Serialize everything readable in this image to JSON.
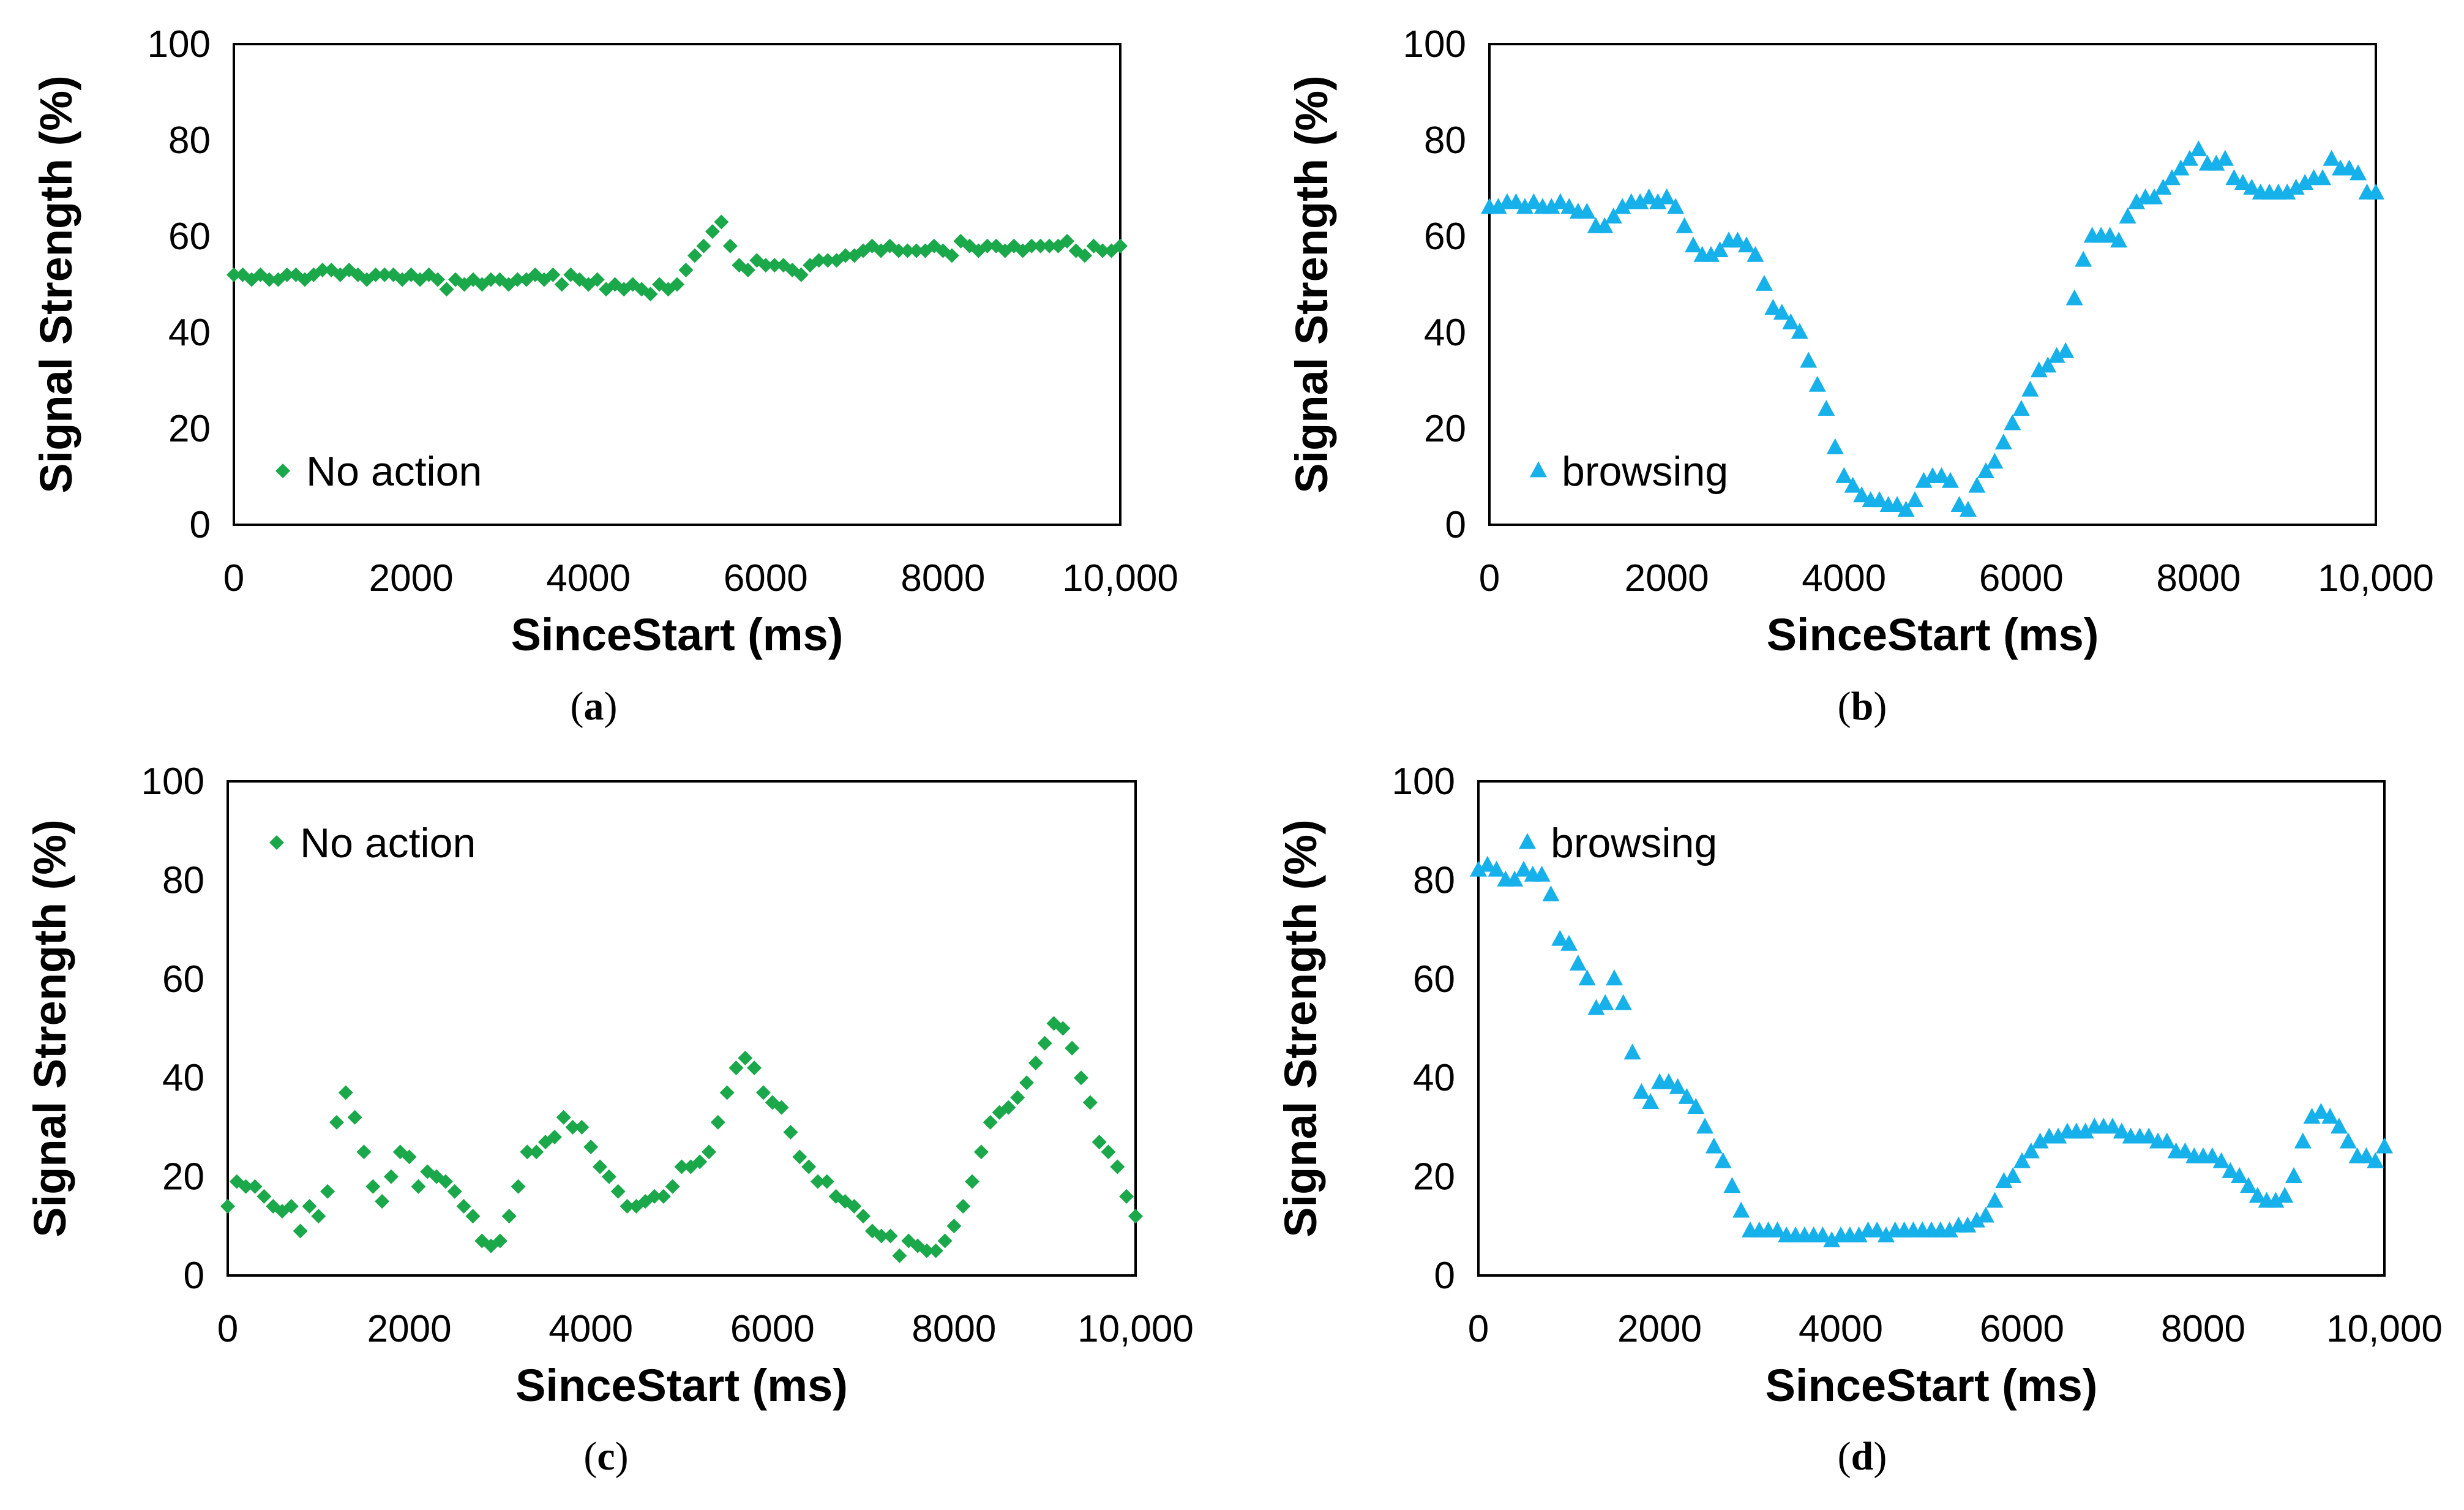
{
  "figure": {
    "panel_count": 4
  },
  "colors": {
    "green": "#1aa84a",
    "blue": "#16b0ea"
  },
  "chart_data": [
    {
      "panel": "a",
      "type": "scatter",
      "marker": "diamond",
      "color": "#1aa84a",
      "xlabel": "SinceStart (ms)",
      "ylabel": "Signal Strength (%)",
      "xlim": [
        0,
        10000
      ],
      "ylim": [
        0,
        100
      ],
      "xticks": [
        0,
        2000,
        4000,
        6000,
        8000,
        10000
      ],
      "xtick_labels": [
        "0",
        "2000",
        "4000",
        "6000",
        "8000",
        "10,000"
      ],
      "yticks": [
        0,
        20,
        40,
        60,
        80,
        100
      ],
      "ytick_labels": [
        "0",
        "20",
        "40",
        "60",
        "80",
        "100"
      ],
      "legend": "No action",
      "legend_position": "bottom-left",
      "label_prefix": "(",
      "label_letter": "a",
      "label_suffix": ")",
      "x": [
        0,
        100,
        200,
        300,
        400,
        500,
        600,
        700,
        800,
        900,
        1000,
        1100,
        1200,
        1300,
        1400,
        1500,
        1600,
        1700,
        1800,
        1900,
        2000,
        2100,
        2200,
        2300,
        2400,
        2500,
        2600,
        2700,
        2800,
        2900,
        3000,
        3100,
        3200,
        3300,
        3400,
        3500,
        3600,
        3700,
        3800,
        3900,
        4000,
        4100,
        4200,
        4300,
        4400,
        4500,
        4600,
        4700,
        4800,
        4900,
        5000,
        5100,
        5200,
        5300,
        5400,
        5500,
        5600,
        5700,
        5800,
        5900,
        6000,
        6100,
        6200,
        6300,
        6400,
        6500,
        6600,
        6700,
        6800,
        6900,
        7000,
        7100,
        7200,
        7300,
        7400,
        7500,
        7600,
        7700,
        7800,
        7900,
        8000,
        8100,
        8200,
        8300,
        8400,
        8500,
        8600,
        8700,
        8800,
        8900,
        9000,
        9100,
        9200,
        9300,
        9400,
        9500,
        9600,
        9700,
        9800,
        9900,
        10000
      ],
      "y": [
        52,
        52,
        51,
        52,
        51,
        51,
        52,
        52,
        51,
        52,
        53,
        53,
        52,
        53,
        52,
        51,
        52,
        52,
        52,
        51,
        52,
        51,
        52,
        51,
        49,
        51,
        50,
        51,
        50,
        51,
        51,
        50,
        51,
        51,
        52,
        51,
        52,
        50,
        52,
        51,
        50,
        51,
        49,
        50,
        49,
        50,
        49,
        48,
        50,
        49,
        50,
        53,
        56,
        58,
        61,
        63,
        58,
        54,
        53,
        55,
        54,
        54,
        54,
        53,
        52,
        54,
        55,
        55,
        55,
        56,
        56,
        57,
        58,
        57,
        58,
        57,
        57,
        57,
        57,
        58,
        57,
        56,
        59,
        58,
        57,
        58,
        58,
        57,
        58,
        57,
        58,
        58,
        58,
        58,
        59,
        57,
        56,
        58,
        57,
        57,
        58
      ]
    },
    {
      "panel": "b",
      "type": "scatter",
      "marker": "triangle",
      "color": "#16b0ea",
      "xlabel": "SinceStart (ms)",
      "ylabel": "Signal Strength (%)",
      "xlim": [
        0,
        10000
      ],
      "ylim": [
        0,
        100
      ],
      "xticks": [
        0,
        2000,
        4000,
        6000,
        8000,
        10000
      ],
      "xtick_labels": [
        "0",
        "2000",
        "4000",
        "6000",
        "8000",
        "10,000"
      ],
      "yticks": [
        0,
        20,
        40,
        60,
        80,
        100
      ],
      "ytick_labels": [
        "0",
        "20",
        "40",
        "60",
        "80",
        "100"
      ],
      "legend": "browsing",
      "legend_position": "bottom-left",
      "label_prefix": "(",
      "label_letter": "b",
      "label_suffix": ")",
      "x": [
        0,
        100,
        200,
        300,
        400,
        500,
        600,
        700,
        800,
        900,
        1000,
        1100,
        1200,
        1300,
        1400,
        1500,
        1600,
        1700,
        1800,
        1900,
        2000,
        2100,
        2200,
        2300,
        2400,
        2500,
        2600,
        2700,
        2800,
        2900,
        3000,
        3100,
        3200,
        3300,
        3400,
        3500,
        3600,
        3700,
        3800,
        3900,
        4000,
        4100,
        4200,
        4300,
        4400,
        4500,
        4600,
        4700,
        4800,
        4900,
        5000,
        5100,
        5200,
        5300,
        5400,
        5500,
        5600,
        5700,
        5800,
        5900,
        6000,
        6100,
        6200,
        6300,
        6400,
        6500,
        6600,
        6700,
        6800,
        6900,
        7000,
        7100,
        7200,
        7300,
        7400,
        7500,
        7600,
        7700,
        7800,
        7900,
        8000,
        8100,
        8200,
        8300,
        8400,
        8500,
        8600,
        8700,
        8800,
        8900,
        9000,
        9100,
        9200,
        9300,
        9400,
        9500,
        9600,
        9700,
        9800,
        9900,
        10000
      ],
      "y": [
        66,
        66,
        67,
        67,
        66,
        67,
        66,
        66,
        67,
        66,
        65,
        65,
        62,
        62,
        64,
        66,
        67,
        67,
        68,
        67,
        68,
        66,
        62,
        58,
        56,
        56,
        57,
        59,
        59,
        58,
        56,
        50,
        45,
        44,
        42,
        40,
        34,
        29,
        24,
        16,
        10,
        8,
        6,
        5,
        5,
        4,
        4,
        3,
        5,
        9,
        10,
        10,
        9,
        4,
        3,
        8,
        11,
        13,
        17,
        21,
        24,
        28,
        32,
        33,
        35,
        36,
        47,
        55,
        60,
        60,
        60,
        59,
        64,
        67,
        68,
        68,
        70,
        72,
        74,
        76,
        78,
        75,
        75,
        76,
        72,
        71,
        70,
        69,
        69,
        69,
        69,
        70,
        71,
        72,
        72,
        76,
        74,
        74,
        73,
        69,
        69
      ]
    },
    {
      "panel": "c",
      "type": "scatter",
      "marker": "diamond",
      "color": "#1aa84a",
      "xlabel": "SinceStart (ms)",
      "ylabel": "Signal Strength (%)",
      "xlim": [
        0,
        10000
      ],
      "ylim": [
        0,
        100
      ],
      "xticks": [
        0,
        2000,
        4000,
        6000,
        8000,
        10000
      ],
      "xtick_labels": [
        "0",
        "2000",
        "4000",
        "6000",
        "8000",
        "10,000"
      ],
      "yticks": [
        0,
        20,
        40,
        60,
        80,
        100
      ],
      "ytick_labels": [
        "0",
        "20",
        "40",
        "60",
        "80",
        "100"
      ],
      "legend": "No action",
      "legend_position": "top-left",
      "label_prefix": "(",
      "label_letter": "c",
      "label_suffix": ")",
      "x": [
        0,
        100,
        200,
        300,
        400,
        500,
        600,
        700,
        800,
        900,
        1000,
        1100,
        1200,
        1300,
        1400,
        1500,
        1600,
        1700,
        1800,
        1900,
        2000,
        2100,
        2200,
        2300,
        2400,
        2500,
        2600,
        2700,
        2800,
        2900,
        3000,
        3100,
        3200,
        3300,
        3400,
        3500,
        3600,
        3700,
        3800,
        3900,
        4000,
        4100,
        4200,
        4300,
        4400,
        4500,
        4600,
        4700,
        4800,
        4900,
        5000,
        5100,
        5200,
        5300,
        5400,
        5500,
        5600,
        5700,
        5800,
        5900,
        6000,
        6100,
        6200,
        6300,
        6400,
        6500,
        6600,
        6700,
        6800,
        6900,
        7000,
        7100,
        7200,
        7300,
        7400,
        7500,
        7600,
        7700,
        7800,
        7900,
        8000,
        8100,
        8200,
        8300,
        8400,
        8500,
        8600,
        8700,
        8800,
        8900,
        9000,
        9100,
        9200,
        9300,
        9400,
        9500,
        9600,
        9700,
        9800,
        9900,
        10000
      ],
      "y": [
        14,
        19,
        18,
        18,
        16,
        14,
        13,
        14,
        9,
        14,
        12,
        17,
        31,
        37,
        32,
        25,
        18,
        15,
        20,
        25,
        24,
        18,
        21,
        20,
        19,
        17,
        14,
        12,
        7,
        6,
        7,
        12,
        18,
        25,
        25,
        27,
        28,
        32,
        30,
        30,
        26,
        22,
        20,
        17,
        14,
        14,
        15,
        16,
        16,
        18,
        22,
        22,
        23,
        25,
        31,
        37,
        42,
        44,
        42,
        37,
        35,
        34,
        29,
        24,
        22,
        19,
        19,
        16,
        15,
        14,
        12,
        9,
        8,
        8,
        4,
        7,
        6,
        5,
        5,
        7,
        10,
        14,
        19,
        25,
        31,
        33,
        34,
        36,
        39,
        43,
        47,
        51,
        50,
        46,
        40,
        35,
        27,
        25,
        22,
        16,
        12
      ]
    },
    {
      "panel": "d",
      "type": "scatter",
      "marker": "triangle",
      "color": "#16b0ea",
      "xlabel": "SinceStart (ms)",
      "ylabel": "Signal Strength (%)",
      "xlim": [
        0,
        10000
      ],
      "ylim": [
        0,
        100
      ],
      "xticks": [
        0,
        2000,
        4000,
        6000,
        8000,
        10000
      ],
      "xtick_labels": [
        "0",
        "2000",
        "4000",
        "6000",
        "8000",
        "10,000"
      ],
      "yticks": [
        0,
        20,
        40,
        60,
        80,
        100
      ],
      "ytick_labels": [
        "0",
        "20",
        "40",
        "60",
        "80",
        "100"
      ],
      "legend": "browsing",
      "legend_position": "top-left",
      "label_prefix": "(",
      "label_letter": "d",
      "label_suffix": ")",
      "x": [
        0,
        100,
        200,
        300,
        400,
        500,
        600,
        700,
        800,
        900,
        1000,
        1100,
        1200,
        1300,
        1400,
        1500,
        1600,
        1700,
        1800,
        1900,
        2000,
        2100,
        2200,
        2300,
        2400,
        2500,
        2600,
        2700,
        2800,
        2900,
        3000,
        3100,
        3200,
        3300,
        3400,
        3500,
        3600,
        3700,
        3800,
        3900,
        4000,
        4100,
        4200,
        4300,
        4400,
        4500,
        4600,
        4700,
        4800,
        4900,
        5000,
        5100,
        5200,
        5300,
        5400,
        5500,
        5600,
        5700,
        5800,
        5900,
        6000,
        6100,
        6200,
        6300,
        6400,
        6500,
        6600,
        6700,
        6800,
        6900,
        7000,
        7100,
        7200,
        7300,
        7400,
        7500,
        7600,
        7700,
        7800,
        7900,
        8000,
        8100,
        8200,
        8300,
        8400,
        8500,
        8600,
        8700,
        8800,
        8900,
        9000,
        9100,
        9200,
        9300,
        9400,
        9500,
        9600,
        9700,
        9800,
        9900,
        10000
      ],
      "y": [
        82,
        83,
        82,
        80,
        80,
        82,
        81,
        81,
        77,
        68,
        67,
        63,
        60,
        54,
        55,
        60,
        55,
        45,
        37,
        35,
        39,
        39,
        38,
        36,
        34,
        30,
        26,
        23,
        18,
        13,
        9,
        9,
        9,
        9,
        8,
        8,
        8,
        8,
        8,
        7,
        8,
        8,
        8,
        9,
        9,
        8,
        9,
        9,
        9,
        9,
        9,
        9,
        9,
        10,
        10,
        11,
        12,
        15,
        19,
        20,
        23,
        25,
        27,
        28,
        28,
        29,
        29,
        29,
        30,
        30,
        30,
        29,
        28,
        28,
        28,
        27,
        27,
        25,
        25,
        24,
        24,
        24,
        23,
        21,
        20,
        18,
        16,
        15,
        15,
        16,
        20,
        27,
        32,
        33,
        32,
        30,
        27,
        24,
        24,
        23,
        26
      ]
    }
  ]
}
